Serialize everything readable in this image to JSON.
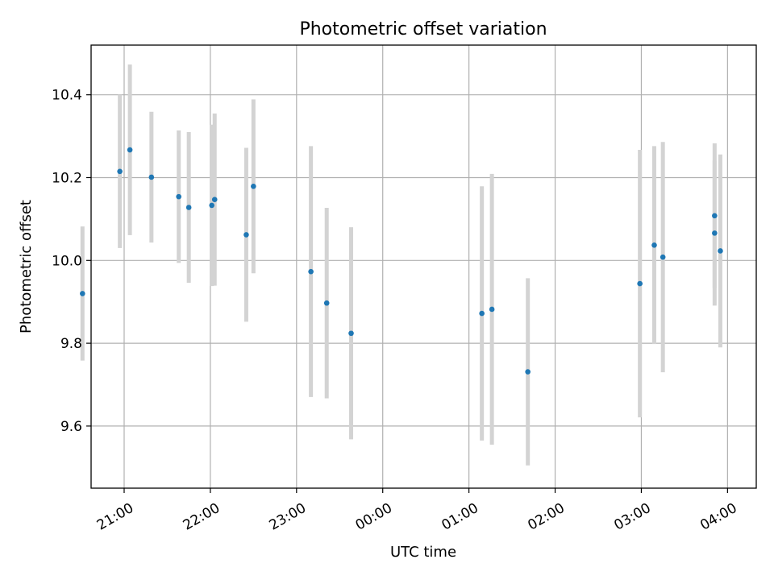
{
  "chart_data": {
    "type": "scatter",
    "title": "Photometric offset variation",
    "xlabel": "UTC time",
    "ylabel": "Photometric offset",
    "grid": true,
    "x_axis": {
      "kind": "time",
      "range": [
        "20:37",
        "04:20"
      ],
      "ticks": [
        "21:00",
        "22:00",
        "23:00",
        "00:00",
        "01:00",
        "02:00",
        "03:00",
        "04:00"
      ]
    },
    "y_axis": {
      "range": [
        9.45,
        10.52
      ],
      "ticks": [
        "9.6",
        "9.8",
        "10.0",
        "10.2",
        "10.4"
      ]
    },
    "colors": {
      "points": "#1f77b4",
      "errorbars": "#d3d3d3"
    },
    "points": [
      {
        "time": "20:31",
        "y": 9.92,
        "yerr": 0.162
      },
      {
        "time": "20:57",
        "y": 10.215,
        "yerr": 0.185
      },
      {
        "time": "21:04",
        "y": 10.267,
        "yerr": 0.206
      },
      {
        "time": "21:19",
        "y": 10.201,
        "yerr": 0.158
      },
      {
        "time": "21:38",
        "y": 10.154,
        "yerr": 0.16
      },
      {
        "time": "21:45",
        "y": 10.128,
        "yerr": 0.182
      },
      {
        "time": "22:01",
        "y": 10.133,
        "yerr": 0.195
      },
      {
        "time": "22:03",
        "y": 10.147,
        "yerr": 0.208
      },
      {
        "time": "22:25",
        "y": 10.062,
        "yerr": 0.21
      },
      {
        "time": "22:30",
        "y": 10.179,
        "yerr": 0.21
      },
      {
        "time": "23:10",
        "y": 9.973,
        "yerr": 0.303
      },
      {
        "time": "23:21",
        "y": 9.897,
        "yerr": 0.23
      },
      {
        "time": "23:38",
        "y": 9.824,
        "yerr": 0.256
      },
      {
        "time": "01:09",
        "y": 9.872,
        "yerr": 0.307
      },
      {
        "time": "01:16",
        "y": 9.882,
        "yerr": 0.327
      },
      {
        "time": "01:41",
        "y": 9.731,
        "yerr": 0.226
      },
      {
        "time": "02:59",
        "y": 9.944,
        "yerr": 0.323
      },
      {
        "time": "03:09",
        "y": 10.037,
        "yerr": 0.239
      },
      {
        "time": "03:15",
        "y": 10.008,
        "yerr": 0.278
      },
      {
        "time": "03:51",
        "y": 10.108,
        "yerr": 0.175
      },
      {
        "time": "03:51",
        "y": 10.066,
        "yerr": 0.175
      },
      {
        "time": "03:55",
        "y": 10.023,
        "yerr": 0.233
      }
    ]
  }
}
